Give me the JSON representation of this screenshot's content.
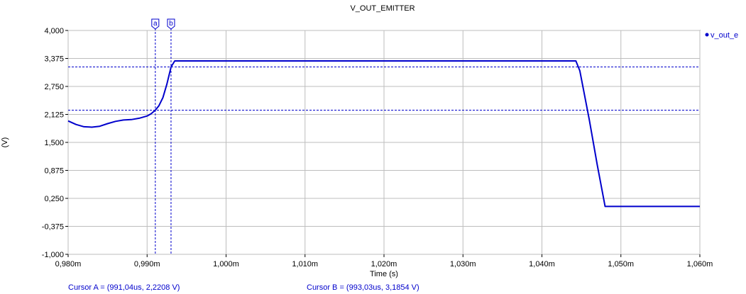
{
  "chart_data": {
    "type": "line",
    "title": "V_OUT_EMITTER",
    "xlabel": "Time (s)",
    "ylabel": "(V)",
    "xlim": [
      980,
      1060
    ],
    "ylim": [
      -1.0,
      4.0
    ],
    "x_ticks": [
      {
        "value": 980,
        "label": "0,980m"
      },
      {
        "value": 990,
        "label": "0,990m"
      },
      {
        "value": 1000,
        "label": "1,000m"
      },
      {
        "value": 1010,
        "label": "1,010m"
      },
      {
        "value": 1020,
        "label": "1,020m"
      },
      {
        "value": 1030,
        "label": "1,030m"
      },
      {
        "value": 1040,
        "label": "1,040m"
      },
      {
        "value": 1050,
        "label": "1,050m"
      },
      {
        "value": 1060,
        "label": "1,060m"
      }
    ],
    "y_ticks": [
      {
        "value": 4.0,
        "label": "4,000"
      },
      {
        "value": 3.375,
        "label": "3,375"
      },
      {
        "value": 2.75,
        "label": "2,750"
      },
      {
        "value": 2.125,
        "label": "2,125"
      },
      {
        "value": 1.5,
        "label": "1,500"
      },
      {
        "value": 0.875,
        "label": "0,875"
      },
      {
        "value": 0.25,
        "label": "0,250"
      },
      {
        "value": -0.375,
        "label": "-0,375"
      },
      {
        "value": -1.0,
        "label": "-1,000"
      }
    ],
    "grid": true,
    "legend_position": "right",
    "series": [
      {
        "name": "v_out_e",
        "color": "#0000cc",
        "points": [
          [
            980.0,
            1.98
          ],
          [
            981.0,
            1.9
          ],
          [
            982.0,
            1.85
          ],
          [
            983.0,
            1.84
          ],
          [
            984.0,
            1.86
          ],
          [
            985.0,
            1.92
          ],
          [
            986.0,
            1.97
          ],
          [
            987.0,
            2.0
          ],
          [
            988.0,
            2.01
          ],
          [
            989.0,
            2.04
          ],
          [
            990.0,
            2.09
          ],
          [
            990.5,
            2.14
          ],
          [
            991.04,
            2.22
          ],
          [
            991.5,
            2.32
          ],
          [
            992.0,
            2.5
          ],
          [
            992.5,
            2.8
          ],
          [
            993.03,
            3.185
          ],
          [
            993.5,
            3.32
          ],
          [
            1000.0,
            3.32
          ],
          [
            1020.0,
            3.32
          ],
          [
            1044.3,
            3.32
          ],
          [
            1044.8,
            3.1
          ],
          [
            1046.0,
            2.0
          ],
          [
            1047.0,
            1.0
          ],
          [
            1048.0,
            0.07
          ],
          [
            1060.0,
            0.07
          ]
        ]
      }
    ],
    "cursors": [
      {
        "label": "a",
        "x": 991.04,
        "y": 2.2208,
        "readout": "Cursor A = (991,04us, 2,2208 V)"
      },
      {
        "label": "b",
        "x": 993.03,
        "y": 3.1854,
        "readout": "Cursor B = (993,03us, 3,1854 V)"
      }
    ]
  }
}
